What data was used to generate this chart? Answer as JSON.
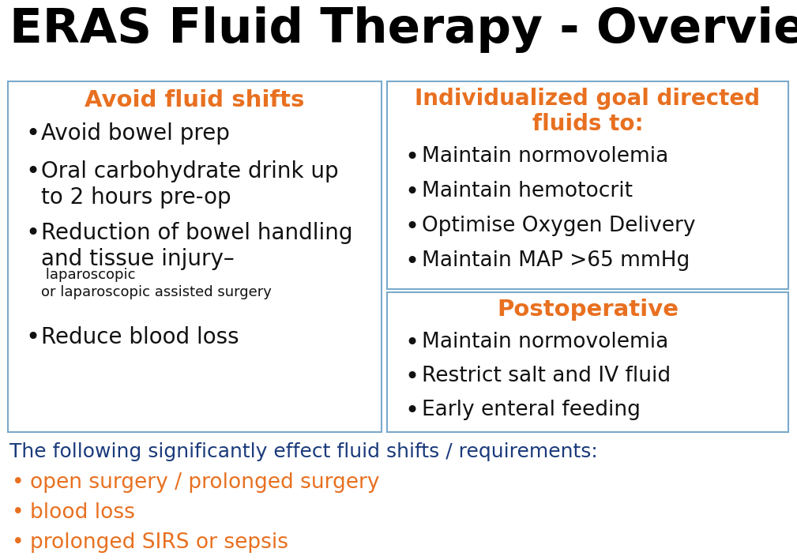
{
  "title": "ERAS Fluid Therapy - Overview",
  "title_color": "#000000",
  "title_fontsize": 44,
  "bg_color": "#ffffff",
  "box_border_color": "#7aaacc",
  "box_bg_color": "#ffffff",
  "orange_color": "#e87020",
  "dark_blue_color": "#1a3a7a",
  "black_color": "#111111",
  "left_box": {
    "title": "Avoid fluid shifts",
    "title_fontsize": 21,
    "bullet_fontsize": 20,
    "small_fontsize": 13
  },
  "top_right_box": {
    "title": "Individualized goal directed\nfluids to:",
    "title_fontsize": 20,
    "bullet_fontsize": 19
  },
  "bottom_right_box": {
    "title": "Postoperative",
    "title_fontsize": 21,
    "bullet_fontsize": 19
  },
  "footer_fontsize": 18,
  "footer_bullet_fontsize": 19
}
